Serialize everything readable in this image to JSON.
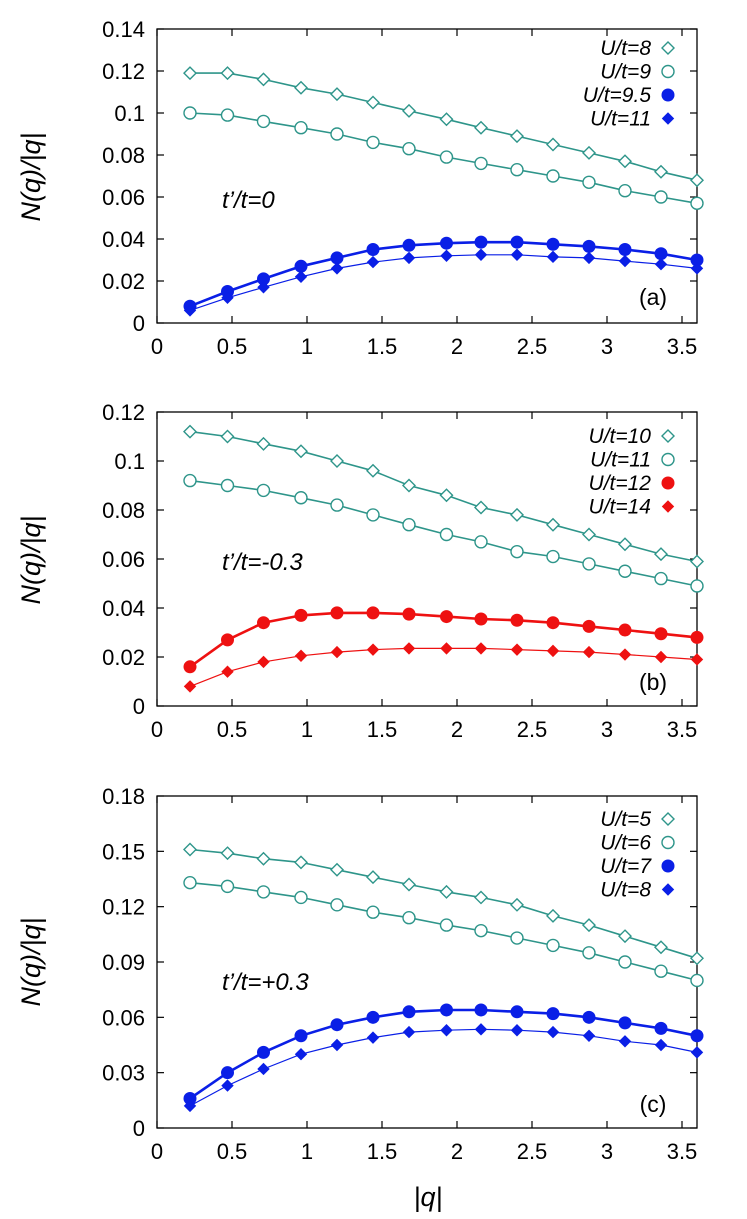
{
  "figure": {
    "xlabel": "|q|"
  },
  "colors": {
    "teal": "#2e958a",
    "blue": "#0a1fe6",
    "red": "#ee1111"
  },
  "chart_data": [
    {
      "type": "line",
      "panel_label": "(a)",
      "annotation": "t’/t=0",
      "xlabel": "|q|",
      "ylabel": "N(q)/|q|",
      "xlim": [
        0,
        3.6
      ],
      "ylim": [
        0,
        0.14
      ],
      "xticks": [
        "0",
        "0.5",
        "1",
        "1.5",
        "2",
        "2.5",
        "3",
        "3.5"
      ],
      "yticks": [
        "0",
        "0.02",
        "0.04",
        "0.06",
        "0.08",
        "0.1",
        "0.12",
        "0.14"
      ],
      "legend_position": "top-right",
      "x": [
        0.22,
        0.47,
        0.71,
        0.96,
        1.2,
        1.44,
        1.68,
        1.93,
        2.16,
        2.4,
        2.64,
        2.88,
        3.12,
        3.36,
        3.6
      ],
      "series": [
        {
          "name": "U/t=8",
          "marker": "diamond-open",
          "color": "#2e958a",
          "values": [
            0.119,
            0.119,
            0.116,
            0.112,
            0.109,
            0.105,
            0.101,
            0.097,
            0.093,
            0.089,
            0.085,
            0.081,
            0.077,
            0.072,
            0.068
          ]
        },
        {
          "name": "U/t=9",
          "marker": "circle-open",
          "color": "#2e958a",
          "values": [
            0.1,
            0.099,
            0.096,
            0.093,
            0.09,
            0.086,
            0.083,
            0.079,
            0.076,
            0.073,
            0.07,
            0.067,
            0.063,
            0.06,
            0.057
          ]
        },
        {
          "name": "U/t=9.5",
          "marker": "circle-filled",
          "color": "#0a1fe6",
          "values": [
            0.008,
            0.015,
            0.021,
            0.027,
            0.031,
            0.035,
            0.037,
            0.038,
            0.0385,
            0.0385,
            0.0375,
            0.0365,
            0.035,
            0.033,
            0.03
          ]
        },
        {
          "name": "U/t=11",
          "marker": "diamond-filled",
          "color": "#0a1fe6",
          "values": [
            0.006,
            0.012,
            0.017,
            0.022,
            0.026,
            0.029,
            0.031,
            0.032,
            0.0325,
            0.0325,
            0.0315,
            0.031,
            0.0295,
            0.028,
            0.026
          ]
        }
      ]
    },
    {
      "type": "line",
      "panel_label": "(b)",
      "annotation": "t’/t=-0.3",
      "xlabel": "|q|",
      "ylabel": "N(q)/|q|",
      "xlim": [
        0,
        3.6
      ],
      "ylim": [
        0,
        0.12
      ],
      "xticks": [
        "0",
        "0.5",
        "1",
        "1.5",
        "2",
        "2.5",
        "3",
        "3.5"
      ],
      "yticks": [
        "0",
        "0.02",
        "0.04",
        "0.06",
        "0.08",
        "0.1",
        "0.12"
      ],
      "legend_position": "top-right",
      "x": [
        0.22,
        0.47,
        0.71,
        0.96,
        1.2,
        1.44,
        1.68,
        1.93,
        2.16,
        2.4,
        2.64,
        2.88,
        3.12,
        3.36,
        3.6
      ],
      "series": [
        {
          "name": "U/t=10",
          "marker": "diamond-open",
          "color": "#2e958a",
          "values": [
            0.112,
            0.11,
            0.107,
            0.104,
            0.1,
            0.096,
            0.09,
            0.086,
            0.081,
            0.078,
            0.074,
            0.07,
            0.066,
            0.062,
            0.059
          ]
        },
        {
          "name": "U/t=11",
          "marker": "circle-open",
          "color": "#2e958a",
          "values": [
            0.092,
            0.09,
            0.088,
            0.085,
            0.082,
            0.078,
            0.074,
            0.07,
            0.067,
            0.063,
            0.061,
            0.058,
            0.055,
            0.052,
            0.049
          ]
        },
        {
          "name": "U/t=12",
          "marker": "circle-filled",
          "color": "#ee1111",
          "values": [
            0.016,
            0.027,
            0.034,
            0.037,
            0.038,
            0.038,
            0.0375,
            0.0365,
            0.0355,
            0.035,
            0.034,
            0.0325,
            0.031,
            0.0295,
            0.028
          ]
        },
        {
          "name": "U/t=14",
          "marker": "diamond-filled",
          "color": "#ee1111",
          "values": [
            0.008,
            0.014,
            0.018,
            0.0205,
            0.022,
            0.023,
            0.0235,
            0.0235,
            0.0235,
            0.023,
            0.0225,
            0.022,
            0.021,
            0.02,
            0.019
          ]
        }
      ]
    },
    {
      "type": "line",
      "panel_label": "(c)",
      "annotation": "t’/t=+0.3",
      "xlabel": "|q|",
      "ylabel": "N(q)/|q|",
      "xlim": [
        0,
        3.6
      ],
      "ylim": [
        0,
        0.18
      ],
      "xticks": [
        "0",
        "0.5",
        "1",
        "1.5",
        "2",
        "2.5",
        "3",
        "3.5"
      ],
      "yticks": [
        "0",
        "0.03",
        "0.06",
        "0.09",
        "0.12",
        "0.15",
        "0.18"
      ],
      "legend_position": "top-right",
      "x": [
        0.22,
        0.47,
        0.71,
        0.96,
        1.2,
        1.44,
        1.68,
        1.93,
        2.16,
        2.4,
        2.64,
        2.88,
        3.12,
        3.36,
        3.6
      ],
      "series": [
        {
          "name": "U/t=5",
          "marker": "diamond-open",
          "color": "#2e958a",
          "values": [
            0.151,
            0.149,
            0.146,
            0.144,
            0.14,
            0.136,
            0.132,
            0.128,
            0.125,
            0.121,
            0.115,
            0.11,
            0.104,
            0.098,
            0.092
          ]
        },
        {
          "name": "U/t=6",
          "marker": "circle-open",
          "color": "#2e958a",
          "values": [
            0.133,
            0.131,
            0.128,
            0.125,
            0.121,
            0.117,
            0.114,
            0.11,
            0.107,
            0.103,
            0.099,
            0.095,
            0.09,
            0.085,
            0.08
          ]
        },
        {
          "name": "U/t=7",
          "marker": "circle-filled",
          "color": "#0a1fe6",
          "values": [
            0.016,
            0.03,
            0.041,
            0.05,
            0.056,
            0.06,
            0.063,
            0.064,
            0.064,
            0.063,
            0.062,
            0.06,
            0.057,
            0.054,
            0.05
          ]
        },
        {
          "name": "U/t=8",
          "marker": "diamond-filled",
          "color": "#0a1fe6",
          "values": [
            0.012,
            0.023,
            0.032,
            0.04,
            0.045,
            0.049,
            0.052,
            0.053,
            0.0535,
            0.053,
            0.052,
            0.05,
            0.047,
            0.045,
            0.041
          ]
        }
      ]
    }
  ]
}
